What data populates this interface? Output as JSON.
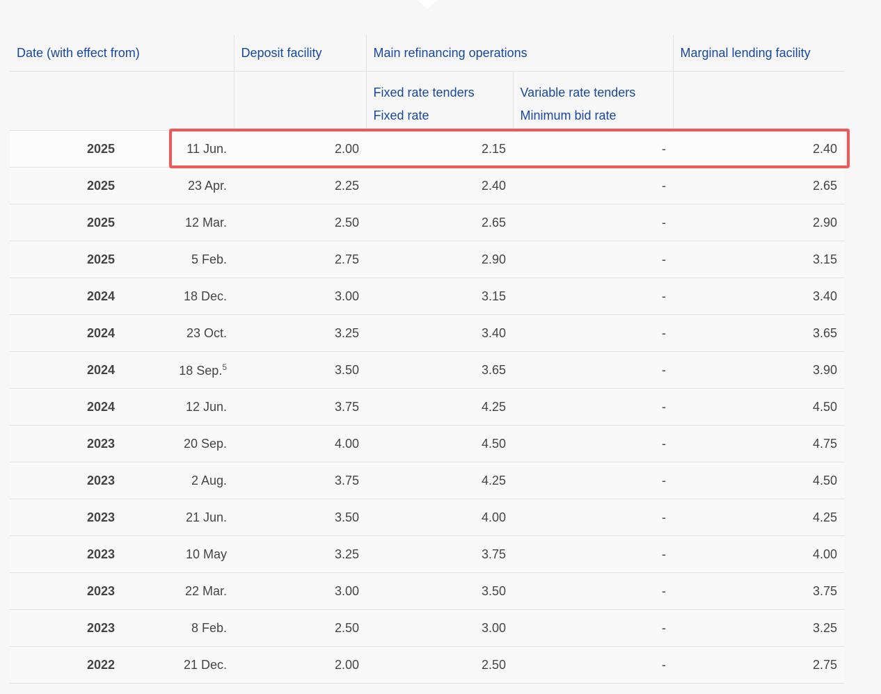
{
  "header": {
    "date": "Date (with effect from)",
    "deposit": "Deposit facility",
    "mro": "Main refinancing operations",
    "marginal": "Marginal lending facility",
    "fixed_tenders": "Fixed rate tenders",
    "fixed_rate": "Fixed rate",
    "variable_tenders": "Variable rate tenders",
    "min_bid": "Minimum bid rate"
  },
  "table": {
    "rows": [
      {
        "year": "2025",
        "date": "11 Jun.",
        "deposit": "2.00",
        "fixed": "2.15",
        "variable": "-",
        "marginal": "2.40"
      },
      {
        "year": "2025",
        "date": "23 Apr.",
        "deposit": "2.25",
        "fixed": "2.40",
        "variable": "-",
        "marginal": "2.65"
      },
      {
        "year": "2025",
        "date": "12 Mar.",
        "deposit": "2.50",
        "fixed": "2.65",
        "variable": "-",
        "marginal": "2.90"
      },
      {
        "year": "2025",
        "date": "5 Feb.",
        "deposit": "2.75",
        "fixed": "2.90",
        "variable": "-",
        "marginal": "3.15"
      },
      {
        "year": "2024",
        "date": "18 Dec.",
        "deposit": "3.00",
        "fixed": "3.15",
        "variable": "-",
        "marginal": "3.40"
      },
      {
        "year": "2024",
        "date": "23 Oct.",
        "deposit": "3.25",
        "fixed": "3.40",
        "variable": "-",
        "marginal": "3.65"
      },
      {
        "year": "2024",
        "date": "18 Sep.",
        "note": "5",
        "deposit": "3.50",
        "fixed": "3.65",
        "variable": "-",
        "marginal": "3.90"
      },
      {
        "year": "2024",
        "date": "12 Jun.",
        "deposit": "3.75",
        "fixed": "4.25",
        "variable": "-",
        "marginal": "4.50"
      },
      {
        "year": "2023",
        "date": "20 Sep.",
        "deposit": "4.00",
        "fixed": "4.50",
        "variable": "-",
        "marginal": "4.75"
      },
      {
        "year": "2023",
        "date": "2 Aug.",
        "deposit": "3.75",
        "fixed": "4.25",
        "variable": "-",
        "marginal": "4.50"
      },
      {
        "year": "2023",
        "date": "21 Jun.",
        "deposit": "3.50",
        "fixed": "4.00",
        "variable": "-",
        "marginal": "4.25"
      },
      {
        "year": "2023",
        "date": "10 May",
        "deposit": "3.25",
        "fixed": "3.75",
        "variable": "-",
        "marginal": "4.00"
      },
      {
        "year": "2023",
        "date": "22 Mar.",
        "deposit": "3.00",
        "fixed": "3.50",
        "variable": "-",
        "marginal": "3.75"
      },
      {
        "year": "2023",
        "date": "8 Feb.",
        "deposit": "2.50",
        "fixed": "3.00",
        "variable": "-",
        "marginal": "3.25"
      },
      {
        "year": "2022",
        "date": "21 Dec.",
        "deposit": "2.00",
        "fixed": "2.50",
        "variable": "-",
        "marginal": "2.75"
      }
    ]
  }
}
